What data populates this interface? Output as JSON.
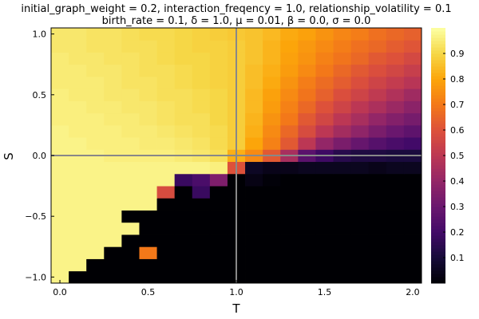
{
  "chart_data": {
    "type": "heatmap",
    "title": "initial_graph_weight = 0.2, interaction_freqency = 1.0, relationship_volatility = 0.1",
    "subtitle": "birth_rate = 0.1, δ = 1.0, μ = 0.01, β = 0.0, σ = 0.0",
    "xlabel": "T",
    "ylabel": "S",
    "xlim": [
      -0.05,
      2.05
    ],
    "ylim": [
      -1.05,
      1.05
    ],
    "x_ticks": [
      0.0,
      0.5,
      1.0,
      1.5,
      2.0
    ],
    "x_tick_labels": [
      "0.0",
      "0.5",
      "1.0",
      "1.5",
      "2.0"
    ],
    "y_ticks": [
      -1.0,
      -0.5,
      0.0,
      0.5,
      1.0
    ],
    "y_tick_labels": [
      "−1.0",
      "−0.5",
      "0.0",
      "0.5",
      "1.0"
    ],
    "x": [
      0.0,
      0.1,
      0.2,
      0.3,
      0.4,
      0.5,
      0.6,
      0.7,
      0.8,
      0.9,
      1.0,
      1.1,
      1.2,
      1.3,
      1.4,
      1.5,
      1.6,
      1.7,
      1.8,
      1.9,
      2.0
    ],
    "y": [
      -1.0,
      -0.9,
      -0.8,
      -0.7,
      -0.6,
      -0.5,
      -0.4,
      -0.3,
      -0.2,
      -0.1,
      0.0,
      0.1,
      0.2,
      0.3,
      0.4,
      0.5,
      0.6,
      0.7,
      0.8,
      0.9,
      1.0
    ],
    "z": [
      [
        0.97,
        0.0,
        0.0,
        0.0,
        0.0,
        0.0,
        0.0,
        0.0,
        0.0,
        0.0,
        0.0,
        0.0,
        0.0,
        0.0,
        0.0,
        0.0,
        0.0,
        0.0,
        0.0,
        0.0,
        0.0
      ],
      [
        0.97,
        0.97,
        0.0,
        0.0,
        0.0,
        0.0,
        0.0,
        0.0,
        0.0,
        0.0,
        0.0,
        0.0,
        0.0,
        0.0,
        0.0,
        0.0,
        0.0,
        0.0,
        0.0,
        0.0,
        0.0
      ],
      [
        0.97,
        0.97,
        0.97,
        0.0,
        0.0,
        0.7,
        0.0,
        0.0,
        0.0,
        0.0,
        0.0,
        0.0,
        0.0,
        0.0,
        0.0,
        0.0,
        0.0,
        0.0,
        0.0,
        0.0,
        0.0
      ],
      [
        0.97,
        0.97,
        0.97,
        0.97,
        0.0,
        0.0,
        0.0,
        0.0,
        0.0,
        0.0,
        0.0,
        0.0,
        0.0,
        0.0,
        0.0,
        0.0,
        0.0,
        0.0,
        0.0,
        0.0,
        0.0
      ],
      [
        0.97,
        0.97,
        0.97,
        0.97,
        0.97,
        0.0,
        0.0,
        0.0,
        0.0,
        0.0,
        0.0,
        0.0,
        0.0,
        0.0,
        0.0,
        0.0,
        0.0,
        0.0,
        0.0,
        0.0,
        0.0
      ],
      [
        0.97,
        0.97,
        0.97,
        0.97,
        0.0,
        0.0,
        0.0,
        0.0,
        0.0,
        0.0,
        0.0,
        0.0,
        0.0,
        0.0,
        0.0,
        0.0,
        0.0,
        0.0,
        0.0,
        0.0,
        0.0
      ],
      [
        0.97,
        0.97,
        0.97,
        0.97,
        0.97,
        0.97,
        0.0,
        0.0,
        0.0,
        0.0,
        0.0,
        0.0,
        0.0,
        0.0,
        0.0,
        0.0,
        0.0,
        0.0,
        0.0,
        0.0,
        0.0
      ],
      [
        0.97,
        0.97,
        0.97,
        0.97,
        0.97,
        0.97,
        0.58,
        0.0,
        0.18,
        0.0,
        0.0,
        0.0,
        0.0,
        0.0,
        0.0,
        0.0,
        0.0,
        0.0,
        0.0,
        0.0,
        0.0
      ],
      [
        0.97,
        0.97,
        0.97,
        0.97,
        0.97,
        0.97,
        0.97,
        0.18,
        0.22,
        0.35,
        0.0,
        0.03,
        0.01,
        0.0,
        0.0,
        0.0,
        0.0,
        0.0,
        0.0,
        0.0,
        0.0
      ],
      [
        0.97,
        0.97,
        0.97,
        0.97,
        0.97,
        0.97,
        0.97,
        0.97,
        0.97,
        0.96,
        0.6,
        0.06,
        0.04,
        0.04,
        0.05,
        0.05,
        0.05,
        0.05,
        0.04,
        0.05,
        0.05
      ],
      [
        0.97,
        0.97,
        0.97,
        0.96,
        0.96,
        0.96,
        0.96,
        0.95,
        0.94,
        0.92,
        0.82,
        0.74,
        0.62,
        0.45,
        0.26,
        0.19,
        0.14,
        0.12,
        0.12,
        0.11,
        0.11
      ],
      [
        0.97,
        0.97,
        0.96,
        0.96,
        0.96,
        0.95,
        0.95,
        0.94,
        0.93,
        0.91,
        0.88,
        0.8,
        0.72,
        0.62,
        0.5,
        0.4,
        0.34,
        0.29,
        0.25,
        0.22,
        0.2
      ],
      [
        0.97,
        0.96,
        0.96,
        0.96,
        0.95,
        0.95,
        0.94,
        0.93,
        0.92,
        0.91,
        0.88,
        0.82,
        0.74,
        0.66,
        0.58,
        0.5,
        0.44,
        0.39,
        0.34,
        0.3,
        0.27
      ],
      [
        0.96,
        0.96,
        0.96,
        0.95,
        0.95,
        0.94,
        0.93,
        0.92,
        0.92,
        0.9,
        0.88,
        0.83,
        0.76,
        0.7,
        0.62,
        0.56,
        0.5,
        0.45,
        0.4,
        0.36,
        0.33
      ],
      [
        0.96,
        0.96,
        0.95,
        0.95,
        0.94,
        0.94,
        0.93,
        0.92,
        0.91,
        0.9,
        0.88,
        0.84,
        0.78,
        0.72,
        0.66,
        0.6,
        0.55,
        0.5,
        0.46,
        0.42,
        0.38
      ],
      [
        0.96,
        0.95,
        0.95,
        0.94,
        0.94,
        0.93,
        0.92,
        0.92,
        0.91,
        0.9,
        0.88,
        0.84,
        0.79,
        0.74,
        0.69,
        0.64,
        0.59,
        0.55,
        0.51,
        0.47,
        0.43
      ],
      [
        0.95,
        0.95,
        0.95,
        0.94,
        0.93,
        0.93,
        0.92,
        0.91,
        0.9,
        0.89,
        0.88,
        0.85,
        0.81,
        0.76,
        0.71,
        0.67,
        0.63,
        0.59,
        0.55,
        0.52,
        0.49
      ],
      [
        0.95,
        0.95,
        0.94,
        0.94,
        0.93,
        0.92,
        0.92,
        0.91,
        0.9,
        0.89,
        0.88,
        0.85,
        0.82,
        0.78,
        0.74,
        0.7,
        0.66,
        0.62,
        0.59,
        0.56,
        0.53
      ],
      [
        0.95,
        0.94,
        0.94,
        0.93,
        0.93,
        0.92,
        0.91,
        0.9,
        0.9,
        0.89,
        0.88,
        0.86,
        0.83,
        0.79,
        0.76,
        0.72,
        0.69,
        0.66,
        0.62,
        0.6,
        0.57
      ],
      [
        0.94,
        0.94,
        0.93,
        0.93,
        0.92,
        0.92,
        0.91,
        0.9,
        0.89,
        0.89,
        0.88,
        0.86,
        0.83,
        0.8,
        0.77,
        0.74,
        0.71,
        0.68,
        0.66,
        0.63,
        0.61
      ],
      [
        0.94,
        0.94,
        0.93,
        0.93,
        0.92,
        0.91,
        0.91,
        0.9,
        0.89,
        0.88,
        0.87,
        0.86,
        0.84,
        0.81,
        0.79,
        0.76,
        0.73,
        0.71,
        0.68,
        0.66,
        0.64
      ]
    ],
    "reference_lines": {
      "x": 1.0,
      "y": 0.0,
      "color": "#888888"
    },
    "colormap": "inferno",
    "colorbar": {
      "range": [
        0.0,
        1.0
      ],
      "ticks": [
        0.1,
        0.2,
        0.3,
        0.4,
        0.5,
        0.6,
        0.7,
        0.8,
        0.9
      ],
      "tick_labels": [
        "0.1",
        "0.2",
        "0.3",
        "0.4",
        "0.5",
        "0.6",
        "0.7",
        "0.8",
        "0.9"
      ]
    },
    "grid": false,
    "legend": "none"
  }
}
